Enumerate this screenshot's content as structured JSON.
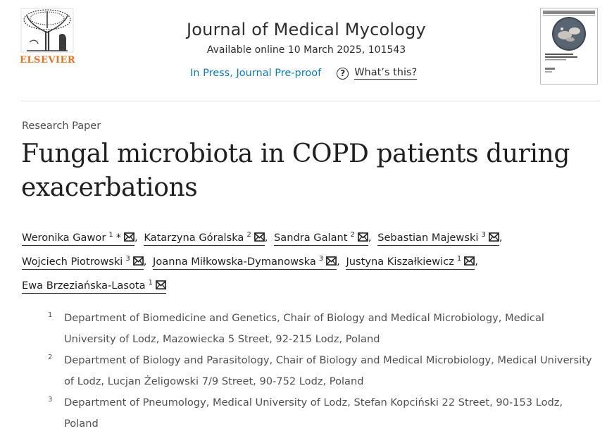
{
  "publisher": {
    "logo_text": "ELSEVIER",
    "brand_color": "#e9711c"
  },
  "journal": {
    "title": "Journal of Medical Mycology",
    "availability": "Available online 10 March 2025, 101543",
    "status_link": "In Press, Journal Pre-proof",
    "help_label": "What’s this?",
    "link_color": "#0c7dbb"
  },
  "cover": {
    "title": "Journal of Medical Mycology"
  },
  "article": {
    "type": "Research Paper",
    "title": "Fungal microbiota in COPD patients during exacerbations",
    "authors": [
      {
        "name": "Weronika Gawor",
        "affil": "1",
        "corresponding": "*"
      },
      {
        "name": "Katarzyna Góralska",
        "affil": "2"
      },
      {
        "name": "Sandra Galant",
        "affil": "2"
      },
      {
        "name": "Sebastian Majewski",
        "affil": "3"
      },
      {
        "name": "Wojciech Piotrowski",
        "affil": "3"
      },
      {
        "name": "Joanna Miłkowska-Dymanowska",
        "affil": "3"
      },
      {
        "name": "Justyna Kiszałkiewicz",
        "affil": "1"
      },
      {
        "name": "Ewa Brzeziańska-Lasota",
        "affil": "1"
      }
    ],
    "separator": ",",
    "affiliations": [
      {
        "num": "1",
        "text": "Department of Biomedicine and Genetics, Chair of Biology and Medical Microbiology, Medical University of Lodz, Mazowiecka 5 Street, 92-215 Lodz, Poland"
      },
      {
        "num": "2",
        "text": "Department of Biology and Parasitology, Chair of Biology and Medical Microbiology, Medical University of Lodz, Lucjan Żeligowski 7/9 Street, 90-752 Lodz, Poland"
      },
      {
        "num": "3",
        "text": "Department of Pneumology, Medical University of Lodz, Stefan Kopciński 22 Street, 90-153 Lodz, Poland"
      }
    ]
  },
  "icons": {
    "author_contact": "envelope-icon",
    "help": "question-circle-icon",
    "logo": "tree-logo-icon"
  }
}
